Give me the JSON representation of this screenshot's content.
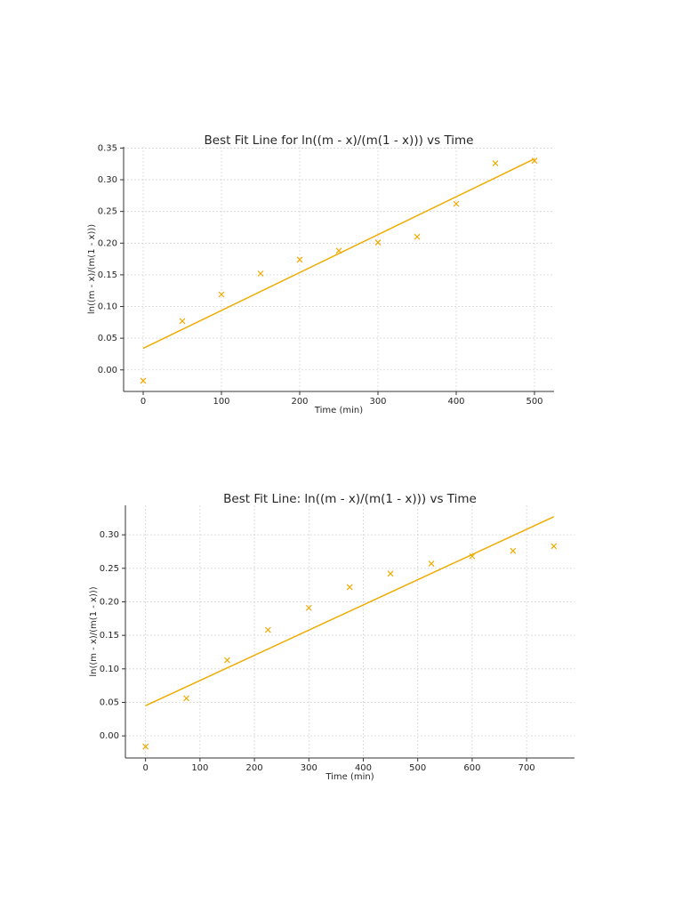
{
  "chart_data": [
    {
      "type": "scatter",
      "title": "Best Fit Line for ln((m - x)/(m(1 - x))) vs Time",
      "xlabel": "Time (min)",
      "ylabel": "ln((m - x)/(m(1 - x)))",
      "color": "#f0ab00",
      "grid": true,
      "x": [
        0,
        50,
        100,
        150,
        200,
        250,
        300,
        350,
        400,
        450,
        500
      ],
      "y": [
        -0.017,
        0.077,
        0.119,
        0.152,
        0.174,
        0.188,
        0.201,
        0.21,
        0.262,
        0.326,
        0.33
      ],
      "fit": {
        "x": [
          0,
          500
        ],
        "y": [
          0.034,
          0.333
        ]
      },
      "xlim": [
        -25,
        525
      ],
      "ylim": [
        -0.034,
        0.352
      ],
      "xticks": [
        0,
        100,
        200,
        300,
        400,
        500
      ],
      "yticks": [
        {
          "value": 0,
          "label": "0.00"
        },
        0.05,
        {
          "value": 0.1,
          "label": "0.10"
        },
        0.15,
        {
          "value": 0.2,
          "label": "0.20"
        },
        0.25,
        {
          "value": 0.3,
          "label": "0.30"
        },
        0.35
      ]
    },
    {
      "type": "scatter",
      "title": "Best Fit Line: ln((m - x)/(m(1 - x))) vs Time",
      "xlabel": "Time (min)",
      "ylabel": "ln((m - x)/(m(1 - x)))",
      "color": "#f0ab00",
      "grid": true,
      "x": [
        0,
        75,
        150,
        225,
        300,
        375,
        450,
        525,
        600,
        675,
        750
      ],
      "y": [
        -0.016,
        0.056,
        0.113,
        0.158,
        0.191,
        0.222,
        0.242,
        0.257,
        0.268,
        0.276,
        0.283
      ],
      "fit": {
        "x": [
          0,
          750
        ],
        "y": [
          0.045,
          0.327
        ]
      },
      "xlim": [
        -37,
        788
      ],
      "ylim": [
        -0.033,
        0.344
      ],
      "xticks": [
        0,
        100,
        200,
        300,
        400,
        500,
        600,
        700
      ],
      "yticks": [
        {
          "value": 0,
          "label": "0.00"
        },
        0.05,
        {
          "value": 0.1,
          "label": "0.10"
        },
        0.15,
        {
          "value": 0.2,
          "label": "0.20"
        },
        0.25,
        {
          "value": 0.3,
          "label": "0.30"
        }
      ]
    }
  ]
}
